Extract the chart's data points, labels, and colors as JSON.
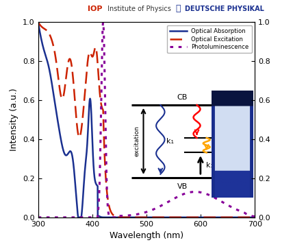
{
  "xmin": 300,
  "xmax": 700,
  "ymin": 0.0,
  "ymax": 1.0,
  "xlabel": "Wavelength (nm)",
  "ylabel_left": "Intensity (a.u.)",
  "xticks": [
    300,
    400,
    500,
    600,
    700
  ],
  "yticks": [
    0.0,
    0.2,
    0.4,
    0.6,
    0.8,
    1.0
  ],
  "legend_labels": [
    "Optical Absorption",
    "Optical Excitation",
    "Photoluminescence"
  ],
  "abs_color": "#1a3090",
  "exc_color": "#cc2200",
  "pl_color": "#880099",
  "header_iop_color": "#cc2200",
  "header_dp_color": "#1a3090"
}
